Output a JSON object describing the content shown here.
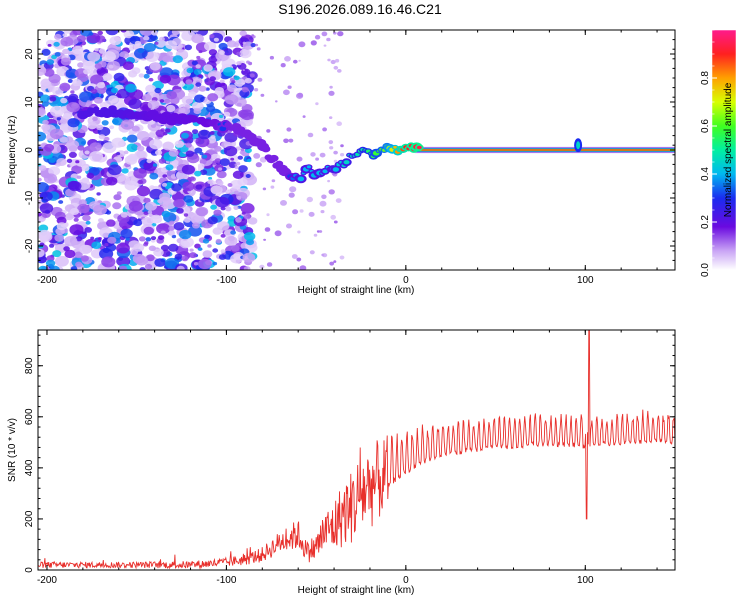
{
  "title": "S196.2026.089.16.46.C21",
  "chart_data": [
    {
      "type": "heatmap",
      "name": "spectrogram",
      "xlabel": "Height of straight line (km)",
      "ylabel": "Frequency (Hz)",
      "xlim": [
        -205,
        150
      ],
      "ylim": [
        -25,
        25
      ],
      "xticks": [
        -200,
        -100,
        0,
        100
      ],
      "yticks": [
        -20,
        -10,
        0,
        10,
        20
      ],
      "colorbar": {
        "label": "Normalized spectral amplitude",
        "range": [
          0,
          1
        ],
        "ticks": [
          0.0,
          0.2,
          0.4,
          0.6,
          0.8
        ]
      },
      "ridge": {
        "x": [
          -180,
          -160,
          -140,
          -120,
          -100,
          -90,
          -80,
          -75,
          -70,
          -65,
          -60,
          -55,
          -50,
          -45,
          -40,
          -35,
          -30,
          -25,
          -20,
          -15,
          -10,
          -5,
          0,
          10,
          30,
          60,
          95,
          100,
          150
        ],
        "y": [
          8,
          8,
          7,
          6,
          5,
          4,
          1,
          -2,
          -3,
          -5,
          -6,
          -4,
          -5,
          -4,
          -4,
          -3,
          -1,
          0,
          -1,
          0,
          0.5,
          0,
          0.5,
          0,
          0,
          0,
          1,
          0,
          0
        ],
        "amplitude": [
          0.4,
          0.4,
          0.35,
          0.35,
          0.3,
          0.3,
          0.3,
          0.3,
          0.3,
          0.3,
          0.4,
          0.4,
          0.4,
          0.4,
          0.4,
          0.45,
          0.45,
          0.5,
          0.55,
          0.6,
          0.65,
          0.8,
          0.9,
          0.95,
          0.95,
          0.95,
          0.95,
          0.95,
          0.95
        ]
      },
      "annotations": []
    },
    {
      "type": "line",
      "name": "snr",
      "xlabel": "Height of straight line (km)",
      "ylabel": "SNR (10 * v/v)",
      "xlim": [
        -205,
        150
      ],
      "ylim": [
        0,
        940
      ],
      "xticks": [
        -200,
        -100,
        0,
        100
      ],
      "yticks": [
        0,
        200,
        400,
        600,
        800
      ],
      "series": [
        {
          "name": "SNR",
          "color": "#e8302c",
          "x": [
            -205,
            -180,
            -150,
            -120,
            -100,
            -90,
            -80,
            -70,
            -60,
            -55,
            -50,
            -45,
            -40,
            -35,
            -30,
            -25,
            -20,
            -15,
            -10,
            -5,
            0,
            10,
            20,
            30,
            40,
            50,
            60,
            70,
            80,
            90,
            100,
            110,
            120,
            130,
            140,
            150
          ],
          "y": [
            20,
            20,
            20,
            20,
            30,
            40,
            60,
            110,
            140,
            70,
            90,
            150,
            170,
            220,
            250,
            300,
            330,
            350,
            380,
            400,
            420,
            460,
            480,
            490,
            500,
            510,
            510,
            520,
            520,
            520,
            510,
            520,
            520,
            530,
            530,
            530
          ],
          "amp": [
            12,
            12,
            12,
            15,
            18,
            22,
            30,
            45,
            60,
            40,
            60,
            80,
            110,
            130,
            150,
            170,
            170,
            160,
            150,
            140,
            130,
            110,
            100,
            95,
            90,
            90,
            90,
            90,
            90,
            90,
            90,
            90,
            90,
            90,
            90,
            90
          ]
        }
      ],
      "spike": {
        "x": 102,
        "y_max": 940,
        "y_min": 200
      }
    }
  ]
}
